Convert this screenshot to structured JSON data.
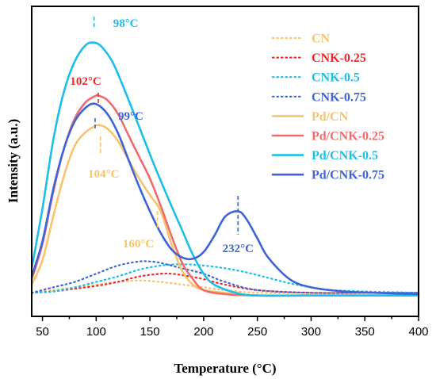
{
  "chart_data": {
    "type": "line",
    "xlabel": "Temperature (°C)",
    "ylabel": "Intensity (a.u.)",
    "xlim": [
      40,
      400
    ],
    "ylim": [
      0,
      1
    ],
    "xticks": [
      50,
      100,
      150,
      200,
      250,
      300,
      350,
      400
    ],
    "grid": false,
    "legend_position": "top-right",
    "series": [
      {
        "name": "CN",
        "color": "#F7C46C",
        "style": "dotted",
        "x": [
          40,
          60,
          80,
          100,
          120,
          140,
          160,
          180,
          200,
          220,
          250,
          300,
          350,
          400
        ],
        "y": [
          0.04,
          0.05,
          0.06,
          0.07,
          0.08,
          0.085,
          0.08,
          0.07,
          0.06,
          0.05,
          0.04,
          0.04,
          0.04,
          0.04
        ]
      },
      {
        "name": "CNK-0.25",
        "color": "#EE2A2A",
        "style": "dotted",
        "x": [
          40,
          60,
          80,
          100,
          120,
          140,
          160,
          170,
          180,
          200,
          220,
          250,
          300,
          350,
          400
        ],
        "y": [
          0.04,
          0.045,
          0.055,
          0.065,
          0.08,
          0.1,
          0.11,
          0.11,
          0.105,
          0.09,
          0.07,
          0.05,
          0.04,
          0.04,
          0.04
        ]
      },
      {
        "name": "CNK-0.5",
        "color": "#1BBFEA",
        "style": "dotted",
        "x": [
          40,
          60,
          80,
          100,
          120,
          140,
          160,
          180,
          200,
          220,
          240,
          260,
          280,
          300,
          320,
          350,
          400
        ],
        "y": [
          0.04,
          0.045,
          0.06,
          0.08,
          0.1,
          0.125,
          0.14,
          0.145,
          0.14,
          0.13,
          0.115,
          0.095,
          0.075,
          0.06,
          0.05,
          0.045,
          0.04
        ]
      },
      {
        "name": "CNK-0.75",
        "color": "#3D64D8",
        "style": "dotted",
        "x": [
          40,
          60,
          80,
          100,
          120,
          140,
          150,
          160,
          180,
          200,
          220,
          250,
          300,
          350,
          400
        ],
        "y": [
          0.04,
          0.06,
          0.08,
          0.11,
          0.14,
          0.155,
          0.155,
          0.15,
          0.13,
          0.11,
          0.08,
          0.05,
          0.04,
          0.04,
          0.04
        ]
      },
      {
        "name": "Pd/CN",
        "color": "#F7C46C",
        "style": "solid",
        "x": [
          40,
          50,
          60,
          70,
          80,
          90,
          100,
          104,
          110,
          120,
          130,
          140,
          150,
          160,
          170,
          180,
          190,
          200,
          220,
          250,
          300,
          400
        ],
        "y": [
          0.07,
          0.16,
          0.32,
          0.47,
          0.58,
          0.63,
          0.655,
          0.655,
          0.645,
          0.6,
          0.53,
          0.46,
          0.4,
          0.34,
          0.22,
          0.12,
          0.07,
          0.05,
          0.04,
          0.03,
          0.03,
          0.03
        ]
      },
      {
        "name": "Pd/CNK-0.25",
        "color": "#F26B6B",
        "style": "solid",
        "x": [
          40,
          50,
          60,
          70,
          80,
          90,
          100,
          102,
          110,
          120,
          130,
          140,
          150,
          160,
          170,
          180,
          190,
          200,
          220,
          250,
          300,
          400
        ],
        "y": [
          0.09,
          0.22,
          0.41,
          0.57,
          0.68,
          0.74,
          0.765,
          0.765,
          0.75,
          0.7,
          0.62,
          0.54,
          0.46,
          0.36,
          0.25,
          0.15,
          0.09,
          0.05,
          0.035,
          0.03,
          0.03,
          0.03
        ]
      },
      {
        "name": "Pd/CNK-0.5",
        "color": "#1BBFEA",
        "style": "solid",
        "x": [
          40,
          50,
          60,
          70,
          80,
          90,
          98,
          105,
          115,
          125,
          140,
          155,
          170,
          180,
          190,
          200,
          210,
          230,
          250,
          300,
          400
        ],
        "y": [
          0.13,
          0.35,
          0.6,
          0.78,
          0.89,
          0.95,
          0.96,
          0.945,
          0.89,
          0.8,
          0.65,
          0.5,
          0.36,
          0.27,
          0.18,
          0.11,
          0.07,
          0.04,
          0.03,
          0.03,
          0.03
        ]
      },
      {
        "name": "Pd/CNK-0.75",
        "color": "#3D64D8",
        "style": "solid",
        "x": [
          40,
          50,
          60,
          70,
          80,
          90,
          99,
          110,
          120,
          130,
          140,
          150,
          160,
          170,
          180,
          190,
          200,
          210,
          220,
          232,
          240,
          250,
          260,
          280,
          300,
          330,
          360,
          400
        ],
        "y": [
          0.1,
          0.23,
          0.42,
          0.57,
          0.67,
          0.72,
          0.735,
          0.7,
          0.63,
          0.53,
          0.43,
          0.34,
          0.26,
          0.2,
          0.17,
          0.165,
          0.19,
          0.25,
          0.32,
          0.34,
          0.31,
          0.24,
          0.17,
          0.09,
          0.06,
          0.045,
          0.04,
          0.035
        ]
      }
    ],
    "annotations": [
      {
        "text": "98°C",
        "x": 98,
        "y": 0.96,
        "color": "#1BBFEA"
      },
      {
        "text": "102°C",
        "x": 102,
        "y": 0.765,
        "color": "#EE2A2A"
      },
      {
        "text": "99°C",
        "x": 99,
        "y": 0.735,
        "color": "#3D64D8"
      },
      {
        "text": "104°C",
        "x": 104,
        "y": 0.655,
        "color": "#F7C46C"
      },
      {
        "text": "160°C",
        "x": 157,
        "y": 0.34,
        "color": "#F7C46C"
      },
      {
        "text": "232°C",
        "x": 232,
        "y": 0.34,
        "color": "#3D64D8"
      }
    ]
  }
}
